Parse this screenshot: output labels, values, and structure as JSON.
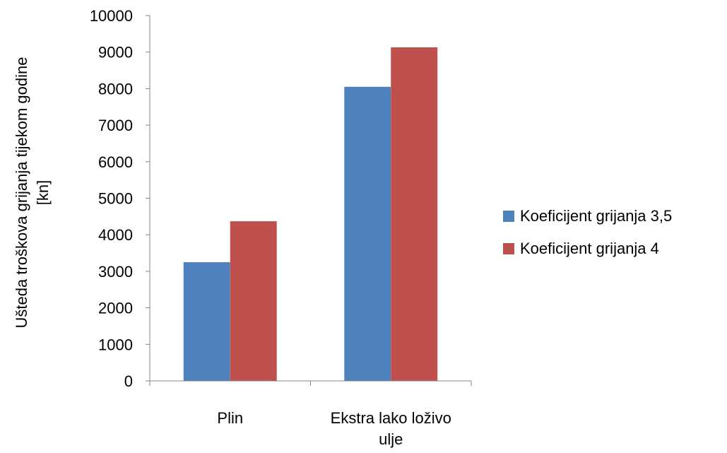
{
  "chart_data": {
    "type": "bar",
    "title": "",
    "ylabel_lines": [
      "Ušteda troškova grijanja tijekom godine",
      "[kn]"
    ],
    "xlabel": "",
    "categories": [
      [
        "Plin"
      ],
      [
        "Ekstra lako loživo",
        "ulje"
      ]
    ],
    "series": [
      {
        "name": "Koeficijent grijanja 3,5",
        "color": "#4F81BD",
        "values": [
          3250,
          8050
        ]
      },
      {
        "name": "Koeficijent grijanja 4",
        "color": "#C0504D",
        "values": [
          4370,
          9130
        ]
      }
    ],
    "ylim": [
      0,
      10000
    ],
    "yticks": [
      "0",
      "1000",
      "2000",
      "3000",
      "4000",
      "5000",
      "6000",
      "7000",
      "8000",
      "9000",
      "10000"
    ],
    "grid": false,
    "legend_position": "right"
  }
}
